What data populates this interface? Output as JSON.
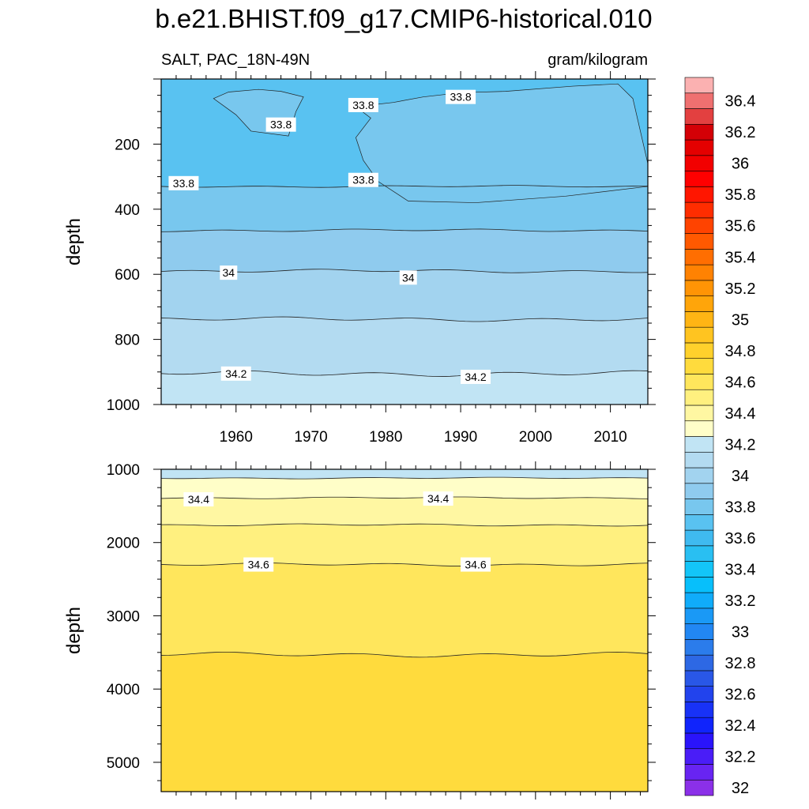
{
  "chart_data": {
    "type": "contour",
    "title": "b.e21.BHIST.f09_g17.CMIP6-historical.010",
    "variable_label": "SALT, PAC_18N-49N",
    "units_label": "gram/kilogram",
    "ylabel": "depth",
    "xlim": [
      1950,
      2015
    ],
    "x_ticks": [
      1960,
      1970,
      1980,
      1990,
      2000,
      2010
    ],
    "panels": [
      {
        "name": "upper",
        "ylim": [
          1000,
          0
        ],
        "y_ticks": [
          200,
          400,
          600,
          800,
          1000
        ],
        "contours": [
          {
            "level": 33.8,
            "depth_mean": 330,
            "labels": [
              {
                "text": "33.8",
                "x": 1953,
                "y": 320
              },
              {
                "text": "33.8",
                "x": 1977,
                "y": 310
              }
            ]
          },
          {
            "level": 33.9,
            "depth_mean": 465,
            "labels": []
          },
          {
            "level": 34.0,
            "depth_mean": 590,
            "labels": [
              {
                "text": "34",
                "x": 1959,
                "y": 595
              },
              {
                "text": "34",
                "x": 1983,
                "y": 610
              }
            ]
          },
          {
            "level": 34.1,
            "depth_mean": 738,
            "labels": []
          },
          {
            "level": 34.2,
            "depth_mean": 905,
            "labels": [
              {
                "text": "34.2",
                "x": 1960,
                "y": 905
              },
              {
                "text": "34.2",
                "x": 1992,
                "y": 915
              }
            ]
          }
        ],
        "surface_features": [
          {
            "level": 33.8,
            "labels": [
              {
                "text": "33.8",
                "x": 1966,
                "y": 140
              },
              {
                "text": "33.8",
                "x": 1977,
                "y": 80
              },
              {
                "text": "33.8",
                "x": 1990,
                "y": 55
              }
            ]
          }
        ]
      },
      {
        "name": "lower",
        "ylim": [
          5400,
          1000
        ],
        "y_ticks": [
          1000,
          2000,
          3000,
          4000,
          5000
        ],
        "contours": [
          {
            "level": 34.3,
            "depth_mean": 1120,
            "labels": []
          },
          {
            "level": 34.4,
            "depth_mean": 1390,
            "labels": [
              {
                "text": "34.4",
                "x": 1955,
                "y": 1410
              },
              {
                "text": "34.4",
                "x": 1987,
                "y": 1400
              }
            ]
          },
          {
            "level": 34.5,
            "depth_mean": 1760,
            "labels": []
          },
          {
            "level": 34.6,
            "depth_mean": 2300,
            "labels": [
              {
                "text": "34.6",
                "x": 1963,
                "y": 2300
              },
              {
                "text": "34.6",
                "x": 1992,
                "y": 2300
              }
            ]
          },
          {
            "level": 34.7,
            "depth_mean": 3530,
            "labels": []
          }
        ]
      }
    ],
    "colorbar": {
      "min": 32.0,
      "max": 36.5,
      "step": 0.1,
      "labels": [
        "32",
        "32.2",
        "32.4",
        "32.6",
        "32.8",
        "33",
        "33.2",
        "33.4",
        "33.6",
        "33.8",
        "34",
        "34.2",
        "34.4",
        "34.6",
        "34.8",
        "35",
        "35.2",
        "35.4",
        "35.6",
        "35.8",
        "36",
        "36.2",
        "36.4"
      ],
      "colors": [
        "#8b30e8",
        "#6824f2",
        "#4a1df7",
        "#2a14fb",
        "#1024fc",
        "#1832f6",
        "#2243ed",
        "#2957e7",
        "#2d68e4",
        "#2b7ceb",
        "#2287f3",
        "#1a99f6",
        "#10acfa",
        "#07bffb",
        "#13c5f8",
        "#29bff2",
        "#3fbaf0",
        "#59c2f1",
        "#78c7ee",
        "#8fcbee",
        "#a2d3ef",
        "#b3dbf1",
        "#c1e4f4",
        "#fffec8",
        "#fff7a2",
        "#fff07f",
        "#ffe65c",
        "#ffdb3d",
        "#ffd12c",
        "#ffc420",
        "#ffb514",
        "#ffa50a",
        "#ff9405",
        "#ff8202",
        "#ff6e01",
        "#ff5900",
        "#ff4300",
        "#ff2d00",
        "#ff1600",
        "#ff0000",
        "#f20000",
        "#e40000",
        "#d40006",
        "#e34040",
        "#ef7070",
        "#fbb1b1"
      ]
    }
  }
}
